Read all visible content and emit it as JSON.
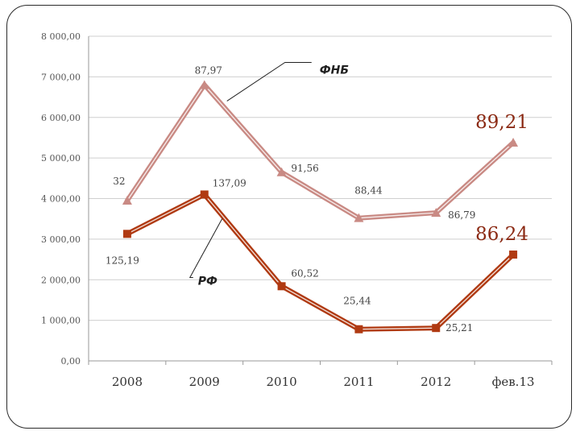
{
  "chart_data": {
    "type": "line",
    "categories": [
      "2008",
      "2009",
      "2010",
      "2011",
      "2012",
      "фев.13"
    ],
    "y_ticks": [
      "0,00",
      "1 000,00",
      "2 000,00",
      "3 000,00",
      "4 000,00",
      "5 000,00",
      "6 000,00",
      "7 000,00",
      "8 000,00"
    ],
    "ylim": [
      0,
      8000
    ],
    "grid": true,
    "series": [
      {
        "name": "ФНБ",
        "values": [
          3950,
          6800,
          4650,
          3520,
          3650,
          5380
        ],
        "labels": [
          "32",
          "87,97",
          "91,56",
          "88,44",
          "86,79",
          "89,21"
        ],
        "color": "#c98a84",
        "marker": "triangle"
      },
      {
        "name": "РФ",
        "values": [
          3130,
          4100,
          1840,
          780,
          810,
          2620
        ],
        "labels": [
          "125,19",
          "137,09",
          "60,52",
          "25,44",
          "25,21",
          "86,24"
        ],
        "color": "#b03a12",
        "marker": "square"
      }
    ]
  }
}
